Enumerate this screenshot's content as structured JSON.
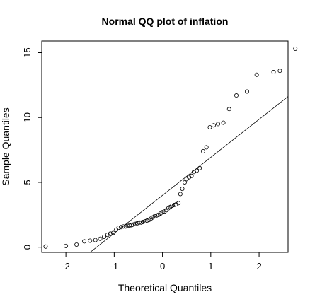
{
  "chart_data": {
    "type": "scatter",
    "title": "Normal QQ plot of inflation",
    "xlabel": "Theoretical Quantiles",
    "ylabel": "Sample Quantiles",
    "xlim": [
      -2.5,
      2.6
    ],
    "ylim": [
      -0.4,
      15.9
    ],
    "x_ticks": [
      -2,
      -1,
      0,
      1,
      2
    ],
    "y_ticks": [
      0,
      5,
      10,
      15
    ],
    "grid": false,
    "legend": "none",
    "reference_line": {
      "intercept": 4.0,
      "slope": 2.93
    },
    "points": [
      [
        -2.42,
        0.05
      ],
      [
        -2.0,
        0.1
      ],
      [
        -1.78,
        0.2
      ],
      [
        -1.62,
        0.45
      ],
      [
        -1.5,
        0.5
      ],
      [
        -1.39,
        0.55
      ],
      [
        -1.29,
        0.65
      ],
      [
        -1.21,
        0.8
      ],
      [
        -1.14,
        0.95
      ],
      [
        -1.08,
        1.05
      ],
      [
        -1.02,
        1.1
      ],
      [
        -0.96,
        1.35
      ],
      [
        -0.91,
        1.5
      ],
      [
        -0.86,
        1.55
      ],
      [
        -0.81,
        1.6
      ],
      [
        -0.76,
        1.6
      ],
      [
        -0.72,
        1.65
      ],
      [
        -0.68,
        1.68
      ],
      [
        -0.64,
        1.7
      ],
      [
        -0.6,
        1.75
      ],
      [
        -0.56,
        1.8
      ],
      [
        -0.52,
        1.85
      ],
      [
        -0.48,
        1.9
      ],
      [
        -0.44,
        1.9
      ],
      [
        -0.4,
        1.95
      ],
      [
        -0.36,
        2.0
      ],
      [
        -0.32,
        2.05
      ],
      [
        -0.28,
        2.1
      ],
      [
        -0.24,
        2.2
      ],
      [
        -0.2,
        2.3
      ],
      [
        -0.16,
        2.4
      ],
      [
        -0.12,
        2.45
      ],
      [
        -0.08,
        2.5
      ],
      [
        -0.04,
        2.6
      ],
      [
        0.0,
        2.7
      ],
      [
        0.04,
        2.75
      ],
      [
        0.08,
        2.85
      ],
      [
        0.12,
        3.0
      ],
      [
        0.16,
        3.1
      ],
      [
        0.2,
        3.2
      ],
      [
        0.24,
        3.25
      ],
      [
        0.28,
        3.3
      ],
      [
        0.33,
        3.4
      ],
      [
        0.37,
        4.1
      ],
      [
        0.41,
        4.5
      ],
      [
        0.46,
        5.0
      ],
      [
        0.5,
        5.25
      ],
      [
        0.55,
        5.4
      ],
      [
        0.6,
        5.5
      ],
      [
        0.65,
        5.8
      ],
      [
        0.71,
        5.9
      ],
      [
        0.77,
        6.1
      ],
      [
        0.84,
        7.4
      ],
      [
        0.91,
        7.7
      ],
      [
        0.98,
        9.25
      ],
      [
        1.06,
        9.4
      ],
      [
        1.15,
        9.5
      ],
      [
        1.26,
        9.6
      ],
      [
        1.38,
        10.65
      ],
      [
        1.53,
        11.7
      ],
      [
        1.75,
        12.0
      ],
      [
        1.95,
        13.3
      ],
      [
        2.3,
        13.5
      ],
      [
        2.43,
        13.6
      ],
      [
        2.75,
        15.3
      ]
    ]
  }
}
